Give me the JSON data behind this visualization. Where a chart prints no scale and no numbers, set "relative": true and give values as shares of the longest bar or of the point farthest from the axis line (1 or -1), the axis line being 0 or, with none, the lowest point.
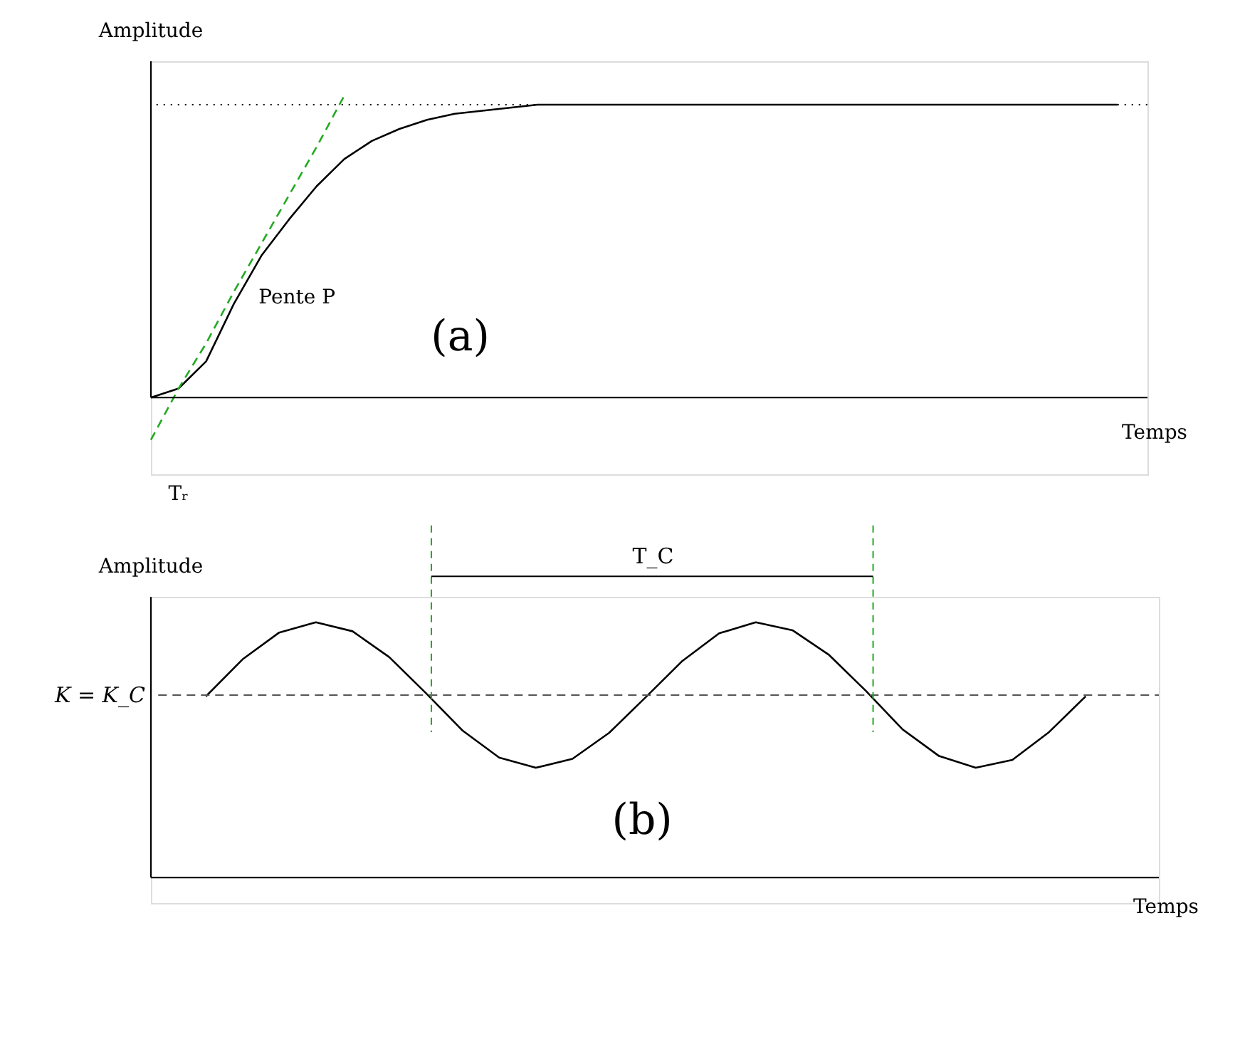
{
  "chart_data": [
    {
      "type": "line",
      "relative": true,
      "ylabel": "Amplitude",
      "xlabel": "Temps",
      "categories": [
        null,
        null,
        null,
        null,
        null,
        null,
        null,
        null,
        null,
        null,
        null,
        null,
        null,
        null,
        null,
        null,
        null,
        null,
        null,
        null,
        null,
        null,
        null,
        null,
        null,
        null,
        null,
        null,
        null,
        null,
        null,
        null,
        null,
        null,
        null,
        null
      ],
      "series": [
        {
          "color": "#000000",
          "line_style": "solid",
          "values": [
            0,
            0.03,
            0.12,
            0.31,
            0.47,
            0.59,
            0.7,
            0.79,
            0.85,
            0.89,
            0.92,
            0.94,
            0.95,
            0.96,
            0.97,
            0.97,
            0.97,
            0.97,
            0.97,
            0.97,
            0.97,
            0.97,
            0.97,
            0.97,
            0.97,
            0.97,
            0.97,
            0.97,
            0.97,
            0.97,
            0.97,
            0.97,
            0.97,
            0.97,
            0.97,
            0.97
          ]
        },
        {
          "type": "line",
          "color": "#22aa22",
          "line_style": "dashed",
          "values": [
            -0.14,
            0.03,
            0.18,
            0.35,
            0.51,
            0.67,
            0.83,
            1.0,
            null,
            null,
            null,
            null,
            null,
            null,
            null,
            null,
            null,
            null,
            null,
            null,
            null,
            null,
            null,
            null,
            null,
            null,
            null,
            null,
            null,
            null,
            null,
            null,
            null,
            null,
            null,
            null
          ]
        }
      ],
      "ref_lines": [
        {
          "axis": "y",
          "value": 0.97,
          "color": "#000000",
          "line_style": "dotted"
        }
      ],
      "annotations": [
        "Pente P",
        "(a)",
        "Tᵣ"
      ]
    },
    {
      "type": "line",
      "relative": true,
      "ylabel": "Amplitude",
      "xlabel": "Temps",
      "categories": [
        null,
        null,
        null,
        null,
        null,
        null,
        null,
        null,
        null,
        null,
        null,
        null,
        null,
        null,
        null,
        null,
        null,
        null,
        null,
        null,
        null,
        null,
        null,
        null,
        null
      ],
      "series": [
        {
          "color": "#000000",
          "line_style": "solid",
          "values": [
            0.71,
            0.855,
            0.96,
            1.0,
            0.965,
            0.864,
            0.723,
            0.576,
            0.47,
            0.43,
            0.465,
            0.567,
            0.707,
            0.849,
            0.957,
            1.0,
            0.969,
            0.872,
            0.732,
            0.581,
            0.476,
            0.43,
            0.461,
            0.57,
            0.71
          ]
        }
      ],
      "ref_lines": [
        {
          "axis": "y",
          "value": 0.715,
          "label": "K = K_C",
          "color": "#555555",
          "line_style": "dashed"
        }
      ],
      "annotations": [
        "T_C",
        "(b)"
      ]
    }
  ]
}
